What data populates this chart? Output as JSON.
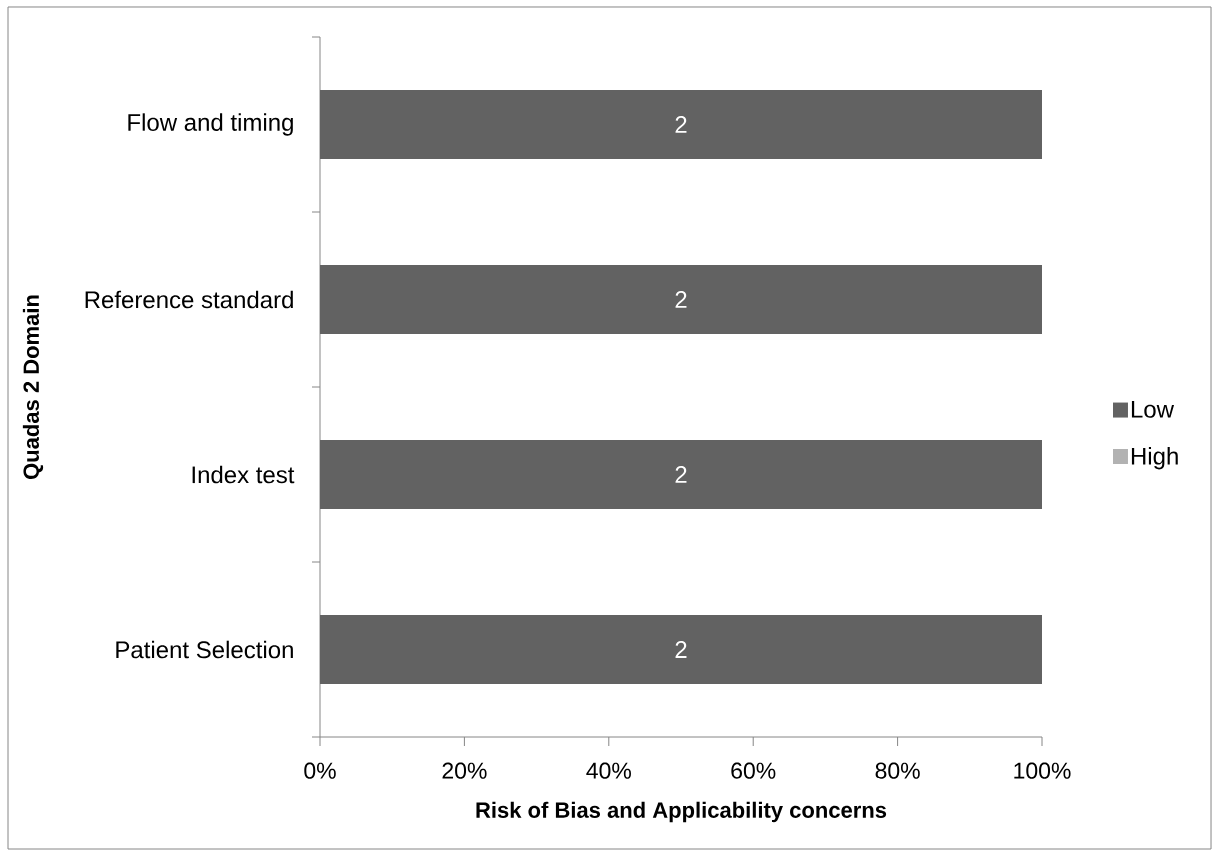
{
  "chart_data": {
    "type": "bar",
    "orientation": "horizontal",
    "stacked": true,
    "xlabel": "Risk of Bias and Applicability concerns",
    "ylabel": "Quadas 2 Domain",
    "categories": [
      "Flow and timing",
      "Reference standard",
      "Index test",
      "Patient Selection"
    ],
    "series": [
      {
        "name": "Low",
        "color": "#626262",
        "values": [
          100,
          100,
          100,
          100
        ]
      },
      {
        "name": "High",
        "color": "#b2b2b2",
        "values": [
          0,
          0,
          0,
          0
        ]
      }
    ],
    "xlim": [
      0,
      100
    ],
    "xticks": [
      {
        "value": 0,
        "label": "0%"
      },
      {
        "value": 20,
        "label": "20%"
      },
      {
        "value": 40,
        "label": "40%"
      },
      {
        "value": 60,
        "label": "60%"
      },
      {
        "value": 80,
        "label": "80%"
      },
      {
        "value": 100,
        "label": "100%"
      }
    ],
    "annotations": [
      "2",
      "2",
      "2",
      "2"
    ],
    "legend": "right"
  }
}
